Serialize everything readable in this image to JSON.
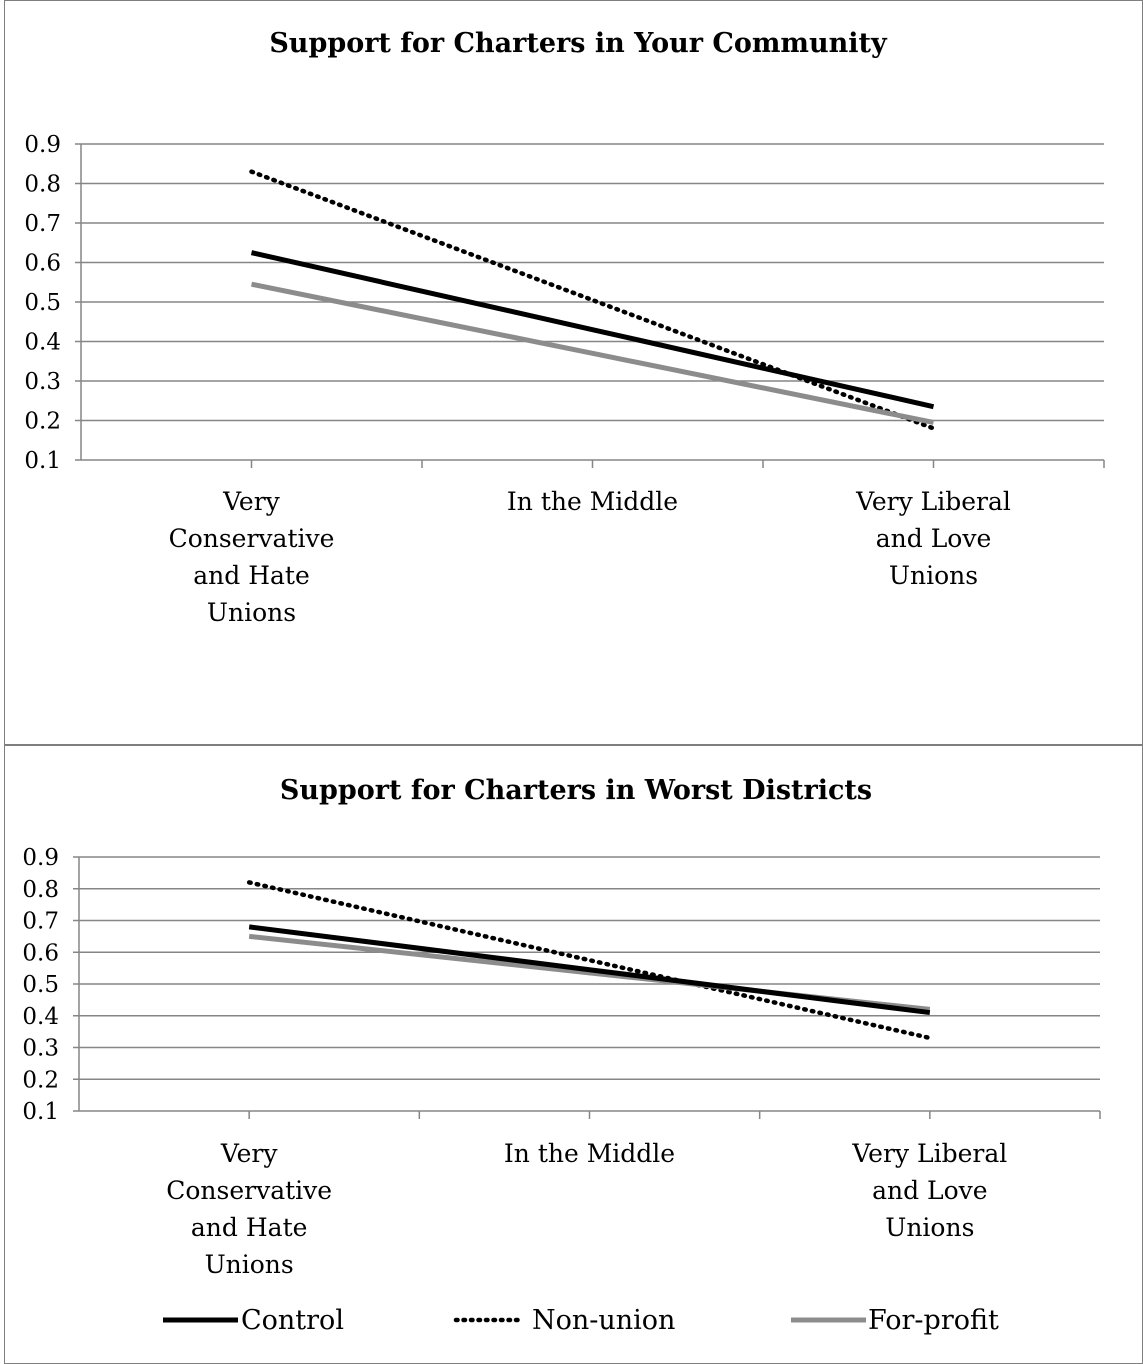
{
  "chart_data": [
    {
      "type": "line",
      "title": "Support for Charters in Your Community",
      "categories": [
        "Very Conservative and Hate Unions",
        "In the Middle",
        "Very Liberal and Love Unions"
      ],
      "category_lines": [
        [
          "Very",
          "Conservative",
          "and Hate",
          "Unions"
        ],
        [
          "In the Middle"
        ],
        [
          "Very Liberal",
          "and Love",
          "Unions"
        ]
      ],
      "x": [
        0,
        1,
        2
      ],
      "y_ticks": [
        "0.1",
        "0.2",
        "0.3",
        "0.4",
        "0.5",
        "0.6",
        "0.7",
        "0.8",
        "0.9"
      ],
      "ylim": [
        0.1,
        0.9
      ],
      "grid": true,
      "series": [
        {
          "name": "Control",
          "values": [
            0.625,
            0.43,
            0.235
          ]
        },
        {
          "name": "Non-union",
          "values": [
            0.83,
            0.505,
            0.18
          ]
        },
        {
          "name": "For-profit",
          "values": [
            0.545,
            0.37,
            0.195
          ]
        }
      ]
    },
    {
      "type": "line",
      "title": "Support for Charters in Worst Districts",
      "categories": [
        "Very Conservative and Hate Unions",
        "In the Middle",
        "Very Liberal and Love Unions"
      ],
      "category_lines": [
        [
          "Very",
          "Conservative",
          "and Hate",
          "Unions"
        ],
        [
          "In the Middle"
        ],
        [
          "Very Liberal",
          "and Love",
          "Unions"
        ]
      ],
      "x": [
        0,
        1,
        2
      ],
      "y_ticks": [
        "0.1",
        "0.2",
        "0.3",
        "0.4",
        "0.5",
        "0.6",
        "0.7",
        "0.8",
        "0.9"
      ],
      "ylim": [
        0.1,
        0.9
      ],
      "grid": true,
      "legend_position": "bottom",
      "series": [
        {
          "name": "Control",
          "values": [
            0.68,
            0.545,
            0.41
          ]
        },
        {
          "name": "Non-union",
          "values": [
            0.82,
            0.575,
            0.33
          ]
        },
        {
          "name": "For-profit",
          "values": [
            0.65,
            0.535,
            0.42
          ]
        }
      ]
    }
  ],
  "series_styles": {
    "Control": {
      "color": "#000000",
      "dash": "none"
    },
    "Non-union": {
      "color": "#000000",
      "dash": "dotted"
    },
    "For-profit": {
      "color": "#8c8c8c",
      "dash": "none"
    }
  },
  "colors": {
    "grid": "#868686",
    "axis": "#868686",
    "frame": "#7f7f7f"
  }
}
